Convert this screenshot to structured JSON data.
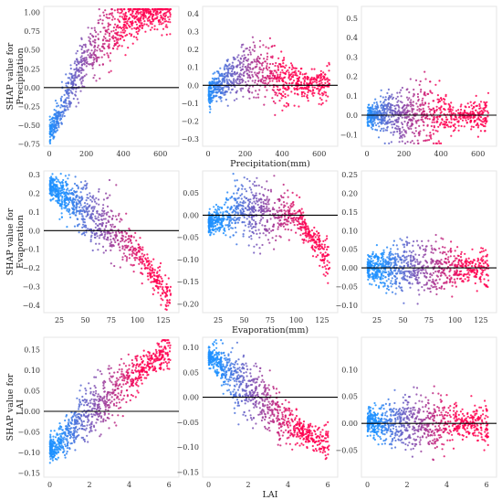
{
  "chart_data": [
    {
      "type": "scatter",
      "ylabel": "SHAP value for\nPrecipitation",
      "xlabel": "",
      "xlim": [
        -30,
        700
      ],
      "ylim": [
        -0.78,
        1.08
      ],
      "xticks": [
        0,
        200,
        400,
        600
      ],
      "yticks": [
        -0.75,
        -0.5,
        -0.25,
        0.0,
        0.25,
        0.5,
        0.75,
        1.0
      ],
      "ytick_labels": [
        "−0.75",
        "−0.50",
        "−0.25",
        "0.00",
        "0.25",
        "0.50",
        "0.75",
        "1.00"
      ],
      "trend": [
        [
          0,
          -0.6
        ],
        [
          50,
          -0.4
        ],
        [
          100,
          -0.1
        ],
        [
          150,
          0.15
        ],
        [
          200,
          0.38
        ],
        [
          300,
          0.68
        ],
        [
          400,
          0.86
        ],
        [
          500,
          0.95
        ],
        [
          650,
          1.0
        ]
      ],
      "color_range": [
        0,
        400
      ]
    },
    {
      "type": "scatter",
      "ylabel": "",
      "xlabel": "Precipitation(mm)",
      "xlim": [
        -30,
        700
      ],
      "ylim": [
        -0.34,
        0.44
      ],
      "xticks": [
        0,
        200,
        400,
        600
      ],
      "yticks": [
        -0.3,
        -0.2,
        -0.1,
        0.0,
        0.1,
        0.2,
        0.3,
        0.4
      ],
      "ytick_labels": [
        "−0.3",
        "−0.2",
        "−0.1",
        "0.0",
        "0.1",
        "0.2",
        "0.3",
        "0.4"
      ],
      "trend": [
        [
          0,
          -0.05
        ],
        [
          50,
          0.0
        ],
        [
          150,
          0.05
        ],
        [
          250,
          0.1
        ],
        [
          350,
          0.05
        ],
        [
          500,
          0.0
        ],
        [
          650,
          0.0
        ]
      ],
      "color_range": [
        0,
        400
      ]
    },
    {
      "type": "scatter",
      "ylabel": "",
      "xlabel": "",
      "xlim": [
        -30,
        700
      ],
      "ylim": [
        -0.16,
        0.56
      ],
      "xticks": [
        0,
        200,
        400,
        600
      ],
      "yticks": [
        -0.1,
        0.0,
        0.1,
        0.2,
        0.3,
        0.4,
        0.5
      ],
      "ytick_labels": [
        "−0.1",
        "0.0",
        "0.1",
        "0.2",
        "0.3",
        "0.4",
        "0.5"
      ],
      "trend": [
        [
          0,
          0.0
        ],
        [
          200,
          0.0
        ],
        [
          400,
          0.0
        ],
        [
          650,
          0.0
        ]
      ],
      "color_range": [
        0,
        400
      ]
    },
    {
      "type": "scatter",
      "ylabel": "SHAP value for\nEvaporation",
      "xlabel": "",
      "xlim": [
        10,
        140
      ],
      "ylim": [
        -0.44,
        0.32
      ],
      "xticks": [
        25,
        50,
        75,
        100,
        125
      ],
      "yticks": [
        -0.4,
        -0.3,
        -0.2,
        -0.1,
        0.0,
        0.1,
        0.2,
        0.3
      ],
      "ytick_labels": [
        "−0.4",
        "−0.3",
        "−0.2",
        "−0.1",
        "0.0",
        "0.1",
        "0.2",
        "0.3"
      ],
      "trend": [
        [
          15,
          0.24
        ],
        [
          50,
          0.1
        ],
        [
          75,
          0.0
        ],
        [
          100,
          -0.12
        ],
        [
          130,
          -0.35
        ]
      ],
      "color_range": [
        30,
        110
      ]
    },
    {
      "type": "scatter",
      "ylabel": "",
      "xlabel": "Evaporation(mm)",
      "xlim": [
        10,
        140
      ],
      "ylim": [
        -0.22,
        0.1
      ],
      "xticks": [
        25,
        50,
        75,
        100,
        125
      ],
      "yticks": [
        -0.2,
        -0.15,
        -0.1,
        -0.05,
        0.0,
        0.05
      ],
      "ytick_labels": [
        "−0.20",
        "−0.15",
        "−0.10",
        "−0.05",
        "0.00",
        "0.05"
      ],
      "trend": [
        [
          15,
          -0.02
        ],
        [
          40,
          0.01
        ],
        [
          70,
          0.0
        ],
        [
          100,
          0.0
        ],
        [
          130,
          -0.1
        ]
      ],
      "color_range": [
        30,
        110
      ]
    },
    {
      "type": "scatter",
      "ylabel": "",
      "xlabel": "",
      "xlim": [
        10,
        140
      ],
      "ylim": [
        -0.12,
        0.26
      ],
      "xticks": [
        25,
        50,
        75,
        100,
        125
      ],
      "yticks": [
        -0.1,
        -0.05,
        0.0,
        0.05,
        0.1,
        0.15,
        0.2,
        0.25
      ],
      "ytick_labels": [
        "−0.10",
        "−0.05",
        "0.00",
        "0.05",
        "0.10",
        "0.15",
        "0.20",
        "0.25"
      ],
      "trend": [
        [
          15,
          0.0
        ],
        [
          50,
          0.0
        ],
        [
          75,
          0.0
        ],
        [
          100,
          0.0
        ],
        [
          130,
          0.0
        ]
      ],
      "color_range": [
        30,
        110
      ]
    },
    {
      "type": "scatter",
      "ylabel": "SHAP value for\nLAI",
      "xlabel": "",
      "xlim": [
        -0.3,
        6.5
      ],
      "ylim": [
        -0.16,
        0.18
      ],
      "xticks": [
        0,
        2,
        4,
        6
      ],
      "yticks": [
        -0.15,
        -0.1,
        -0.05,
        0.0,
        0.05,
        0.1,
        0.15
      ],
      "ytick_labels": [
        "−0.15",
        "−0.10",
        "−0.05",
        "0.00",
        "0.05",
        "0.10",
        "0.15"
      ],
      "trend": [
        [
          0.2,
          -0.09
        ],
        [
          1,
          -0.05
        ],
        [
          2,
          0.0
        ],
        [
          3,
          0.04
        ],
        [
          4,
          0.08
        ],
        [
          5.8,
          0.14
        ]
      ],
      "color_range": [
        0.5,
        4.5
      ]
    },
    {
      "type": "scatter",
      "ylabel": "",
      "xlabel": "LAI",
      "xlim": [
        -0.3,
        6.5
      ],
      "ylim": [
        -0.16,
        0.12
      ],
      "xticks": [
        0,
        2,
        4,
        6
      ],
      "yticks": [
        -0.15,
        -0.1,
        -0.05,
        0.0,
        0.05,
        0.1
      ],
      "ytick_labels": [
        "−0.15",
        "−0.10",
        "−0.05",
        "0.00",
        "0.05",
        "0.10"
      ],
      "trend": [
        [
          0.2,
          0.08
        ],
        [
          1,
          0.05
        ],
        [
          2,
          0.01
        ],
        [
          3,
          -0.02
        ],
        [
          4,
          -0.05
        ],
        [
          5.8,
          -0.09
        ]
      ],
      "color_range": [
        0.5,
        4.5
      ]
    },
    {
      "type": "scatter",
      "ylabel": "",
      "xlabel": "",
      "xlim": [
        -0.3,
        6.5
      ],
      "ylim": [
        -0.1,
        0.16
      ],
      "xticks": [
        0,
        2,
        4,
        6
      ],
      "yticks": [
        -0.05,
        0.0,
        0.05,
        0.1
      ],
      "ytick_labels": [
        "−0.05",
        "0.00",
        "0.05",
        "0.10"
      ],
      "trend": [
        [
          0.2,
          0.0
        ],
        [
          2,
          0.0
        ],
        [
          4,
          0.0
        ],
        [
          5.8,
          0.0
        ]
      ],
      "color_range": [
        0.5,
        4.5
      ]
    }
  ],
  "colors": {
    "low": "#1e90ff",
    "high": "#ff0050",
    "zero_line": "#000000"
  }
}
